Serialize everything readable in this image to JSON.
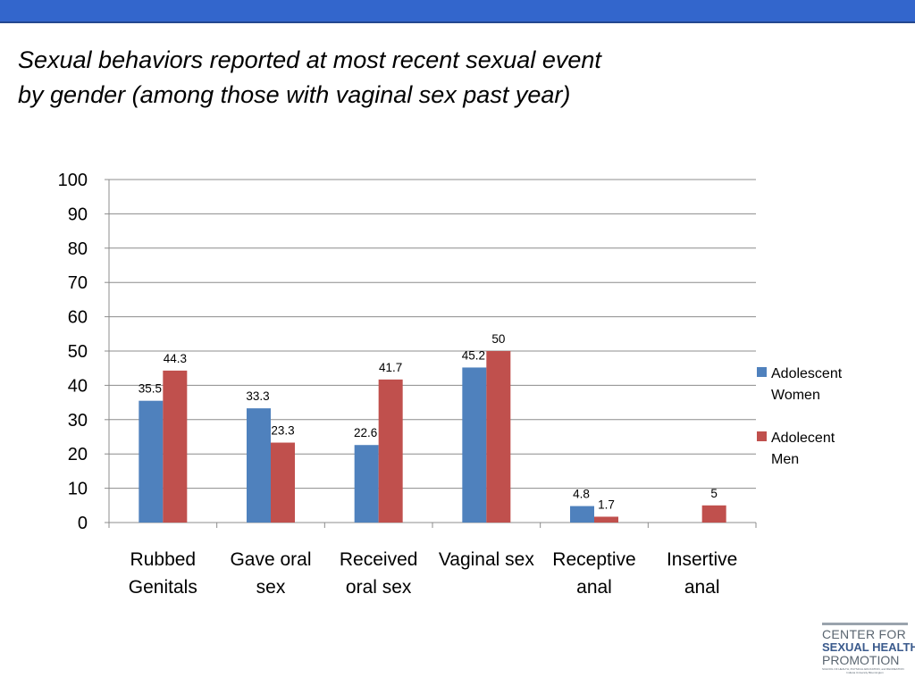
{
  "title_lines": [
    "Sexual behaviors reported at most recent sexual event",
    "by gender (among those with vaginal sex past year)"
  ],
  "chart_data": {
    "type": "bar",
    "categories": [
      [
        "Rubbed",
        "Genitals"
      ],
      [
        "Gave oral",
        "sex"
      ],
      [
        "Received",
        "oral sex"
      ],
      [
        "Vaginal sex"
      ],
      [
        "Receptive",
        "anal"
      ],
      [
        "Insertive",
        "anal"
      ]
    ],
    "series": [
      {
        "name": "Adolescent Women",
        "legend_lines": [
          "Adolescent",
          "Women"
        ],
        "color": "#4f81bd",
        "values": [
          35.5,
          33.3,
          22.6,
          45.2,
          4.8,
          null
        ],
        "labels": [
          "35.5",
          "33.3",
          "22.6",
          "45.2",
          "4.8",
          ""
        ]
      },
      {
        "name": "Adolecent Men",
        "legend_lines": [
          "Adolecent",
          "Men"
        ],
        "color": "#c0504d",
        "values": [
          44.3,
          23.3,
          41.7,
          50,
          1.7,
          5
        ],
        "labels": [
          "44.3",
          "23.3",
          "41.7",
          "50",
          "1.7",
          "5"
        ]
      }
    ],
    "ylim": [
      0,
      100
    ],
    "yticks": [
      "0",
      "10",
      "20",
      "30",
      "40",
      "50",
      "60",
      "70",
      "80",
      "90",
      "100"
    ],
    "grid": true,
    "legend_position": "right"
  },
  "logo": {
    "line1": "CENTER FOR",
    "line2": "SEXUAL HEALTH",
    "line3": "PROMOTION",
    "line4": "SCHOOL OF HEALTH, PHYSICAL EDUCATION, and RECREATION",
    "line5": "Indiana University Bloomington"
  }
}
